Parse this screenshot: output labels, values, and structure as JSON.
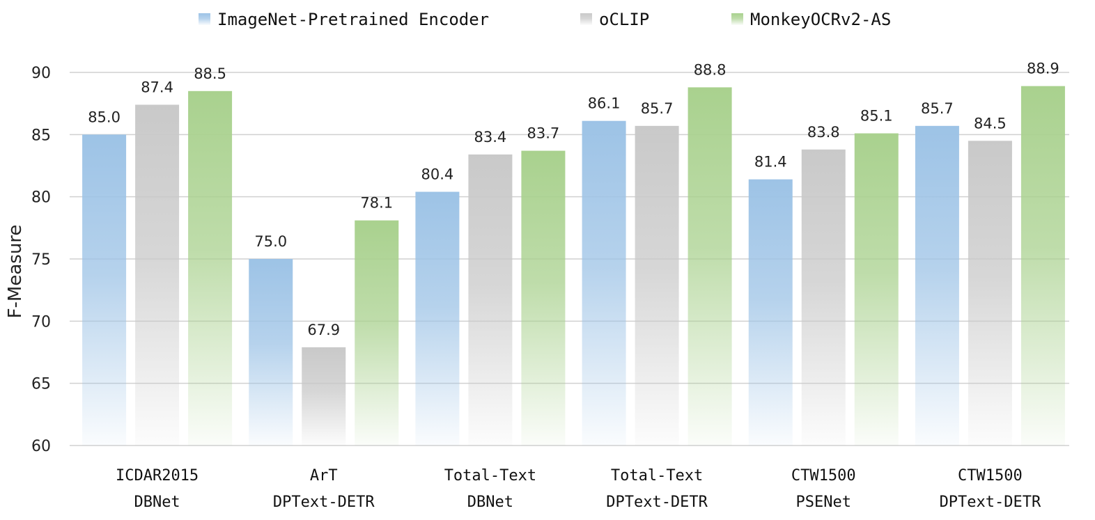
{
  "chart_data": {
    "type": "bar",
    "categories": [
      [
        "ICDAR2015",
        "DBNet"
      ],
      [
        "ArT",
        "DPText-DETR"
      ],
      [
        "Total-Text",
        "DBNet"
      ],
      [
        "Total-Text",
        "DPText-DETR"
      ],
      [
        "CTW1500",
        "PSENet"
      ],
      [
        "CTW1500",
        "DPText-DETR"
      ]
    ],
    "series": [
      {
        "name": "ImageNet-Pretrained Encoder",
        "color": "#9dc3e6",
        "values": [
          85.0,
          75.0,
          80.4,
          86.1,
          81.4,
          85.7
        ]
      },
      {
        "name": "oCLIP",
        "color": "#c9c9c9",
        "values": [
          87.4,
          67.9,
          83.4,
          85.7,
          83.8,
          84.5
        ]
      },
      {
        "name": "MonkeyOCRv2-AS",
        "color": "#a9d18e",
        "values": [
          88.5,
          78.1,
          83.7,
          88.8,
          85.1,
          88.9
        ]
      }
    ],
    "data_labels": [
      [
        "85.0",
        "75.0",
        "80.4",
        "86.1",
        "81.4",
        "85.7"
      ],
      [
        "87.4",
        "67.9",
        "83.4",
        "85.7",
        "83.8",
        "84.5"
      ],
      [
        "88.5",
        "78.1",
        "83.7",
        "88.8",
        "85.1",
        "88.9"
      ]
    ],
    "ylabel": "F-Measure",
    "ylim": [
      60,
      90
    ],
    "yticks": [
      "60",
      "65",
      "70",
      "75",
      "80",
      "85",
      "90"
    ],
    "grid": true,
    "legend_position": "top-center"
  }
}
